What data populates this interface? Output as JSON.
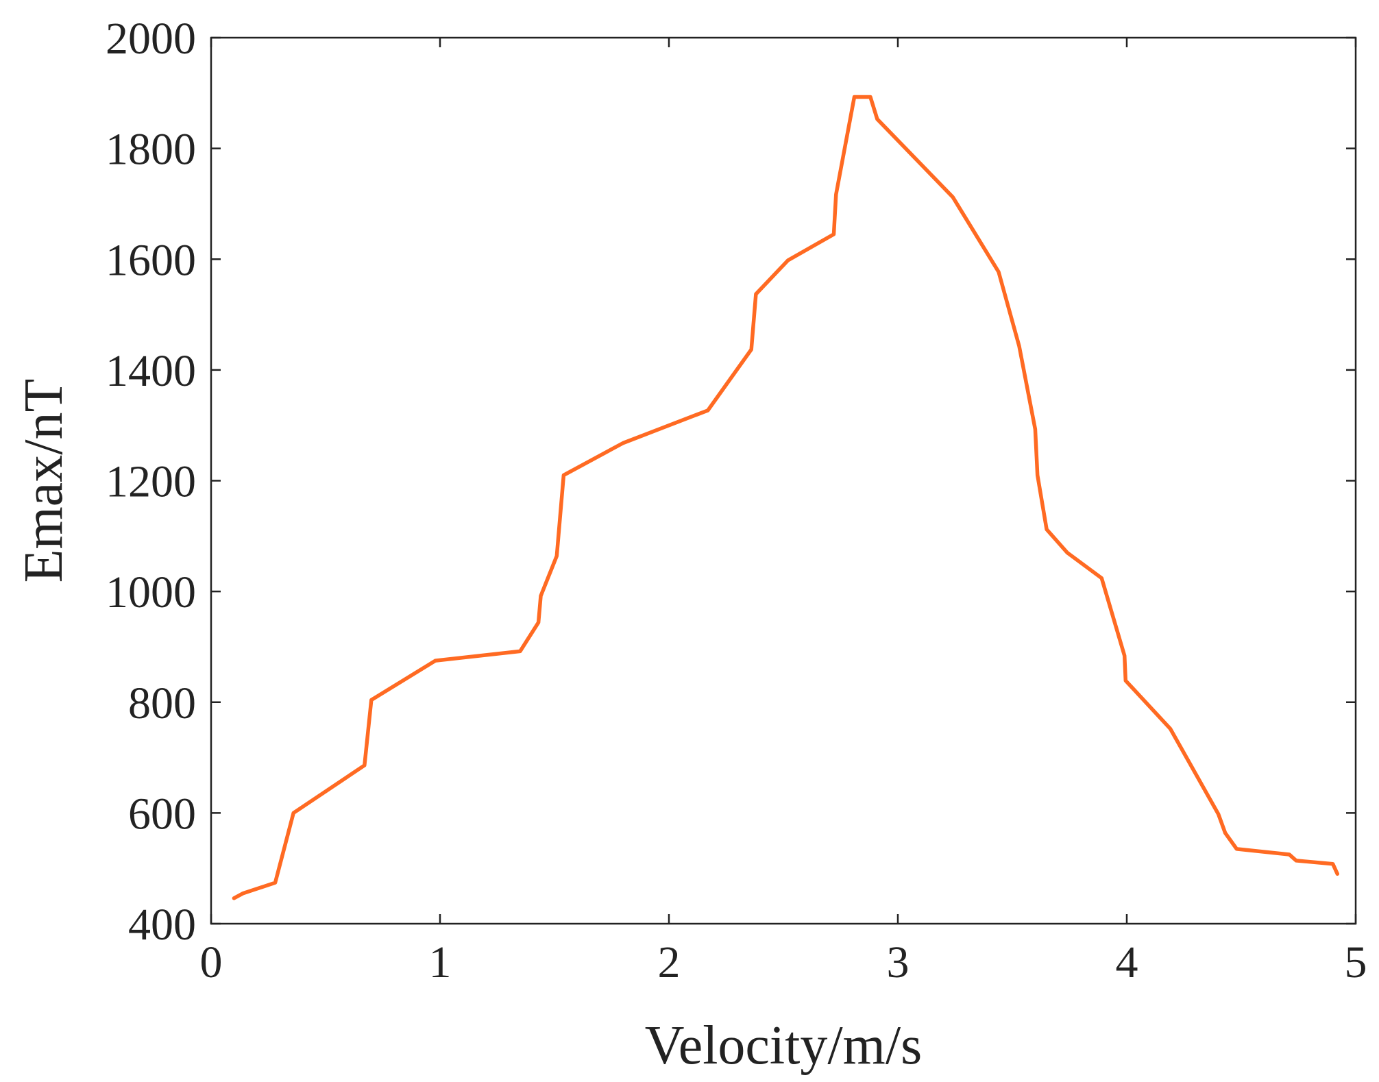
{
  "chart_data": {
    "type": "line",
    "title": "",
    "xlabel": "Velocity/m/s",
    "ylabel": "Emax/nT",
    "xlim": [
      0,
      5
    ],
    "ylim": [
      400,
      2000
    ],
    "xticks": [
      0,
      1,
      2,
      3,
      4,
      5
    ],
    "yticks": [
      400,
      600,
      800,
      1000,
      1200,
      1400,
      1600,
      1800,
      2000
    ],
    "grid": false,
    "legend": "none",
    "series": [
      {
        "color": "#ff6a22",
        "x": [
          0.1,
          0.14,
          0.28,
          0.36,
          0.67,
          0.7,
          0.98,
          1.35,
          1.43,
          1.44,
          1.51,
          1.54,
          1.8,
          2.17,
          2.36,
          2.38,
          2.52,
          2.72,
          2.73,
          2.81,
          2.88,
          2.91,
          3.24,
          3.44,
          3.53,
          3.6,
          3.61,
          3.65,
          3.74,
          3.89,
          3.99,
          3.995,
          4.19,
          4.4,
          4.43,
          4.48,
          4.71,
          4.74,
          4.9,
          4.92
        ],
        "y": [
          446,
          455,
          474,
          600,
          686,
          804,
          875,
          892,
          944,
          992,
          1064,
          1210,
          1268,
          1327,
          1437,
          1537,
          1598,
          1645,
          1717,
          1893,
          1893,
          1853,
          1712,
          1577,
          1443,
          1293,
          1210,
          1112,
          1070,
          1024,
          884,
          839,
          752,
          598,
          564,
          535,
          525,
          514,
          508,
          490
        ]
      }
    ]
  }
}
